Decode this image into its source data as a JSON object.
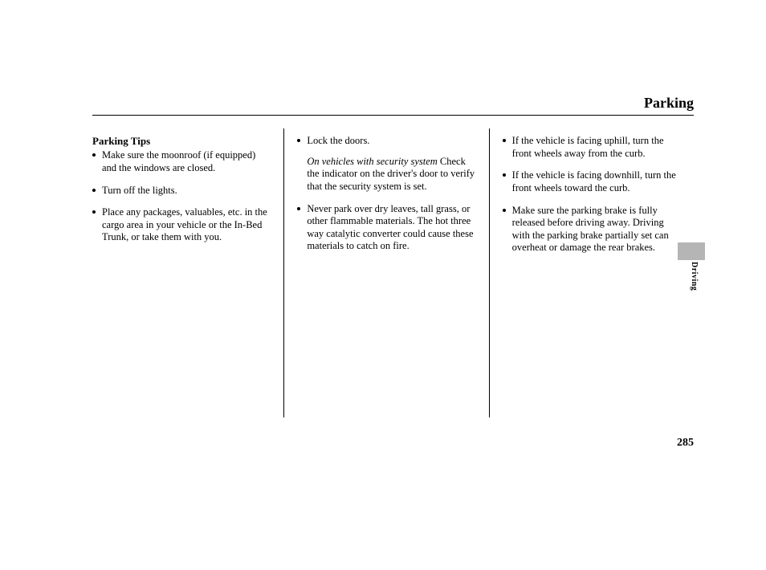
{
  "header": {
    "title": "Parking"
  },
  "section_heading": "Parking Tips",
  "columns": [
    {
      "items": [
        {
          "text": "Make sure the moonroof (if equipped) and the windows are closed."
        },
        {
          "text": "Turn off the lights."
        },
        {
          "text": "Place any packages, valuables, etc. in the cargo area in your vehicle or the In-Bed Trunk, or take them with you."
        }
      ]
    },
    {
      "items": [
        {
          "text": "Lock the doors.",
          "sub_italic": "On vehicles with security system",
          "sub_text": "Check the indicator on the driver's door to verify that the security system is set."
        },
        {
          "text": "Never park over dry leaves, tall grass, or other flammable materials. The hot three way catalytic converter could cause these materials to catch on fire."
        }
      ]
    },
    {
      "items": [
        {
          "text": "If the vehicle is facing uphill, turn the front wheels away from the curb."
        },
        {
          "text": "If the vehicle is facing downhill, turn the front wheels toward the curb."
        },
        {
          "text": "Make sure the parking brake is fully released before driving away. Driving with the parking brake partially set can overheat or damage the rear brakes."
        }
      ]
    }
  ],
  "side_label": "Driving",
  "page_number": "285"
}
